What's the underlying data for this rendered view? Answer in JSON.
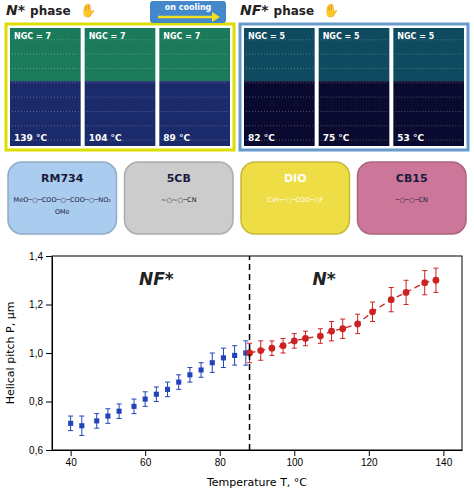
{
  "chart_data": {
    "type": "scatter",
    "xlabel": "Temperature T, °C",
    "ylabel": "Helical pitch P, μm",
    "xlim": [
      35,
      145
    ],
    "ylim": [
      0.6,
      1.4
    ],
    "xticks": [
      40,
      60,
      80,
      100,
      120,
      140
    ],
    "yticks": [
      {
        "value": 0.6,
        "label": "0,6"
      },
      {
        "value": 0.8,
        "label": "0,8"
      },
      {
        "value": 1.0,
        "label": "1,0"
      },
      {
        "value": 1.2,
        "label": "1,2"
      },
      {
        "value": 1.4,
        "label": "1,4"
      }
    ],
    "series": [
      {
        "color": "#2244bb",
        "marker": "square",
        "x": [
          40,
          43,
          47,
          50,
          53,
          57,
          60,
          63,
          66,
          69,
          72,
          75,
          78,
          81,
          84,
          87
        ],
        "values": [
          0.71,
          0.7,
          0.72,
          0.74,
          0.76,
          0.78,
          0.81,
          0.83,
          0.85,
          0.88,
          0.91,
          0.93,
          0.96,
          0.98,
          0.99,
          1.0
        ],
        "errors": [
          0.03,
          0.04,
          0.03,
          0.03,
          0.03,
          0.03,
          0.03,
          0.03,
          0.03,
          0.03,
          0.03,
          0.03,
          0.04,
          0.04,
          0.04,
          0.05
        ]
      },
      {
        "color": "#cc2222",
        "marker": "circle",
        "line_style": "dashed",
        "x": [
          88,
          91,
          94,
          97,
          100,
          103,
          107,
          110,
          113,
          117,
          121,
          126,
          130,
          135,
          138
        ],
        "values": [
          1.0,
          1.01,
          1.02,
          1.03,
          1.05,
          1.06,
          1.07,
          1.09,
          1.1,
          1.12,
          1.17,
          1.22,
          1.25,
          1.29,
          1.3
        ],
        "errors": [
          0.04,
          0.04,
          0.03,
          0.03,
          0.03,
          0.03,
          0.03,
          0.04,
          0.04,
          0.04,
          0.04,
          0.05,
          0.05,
          0.05,
          0.05
        ]
      }
    ],
    "vlines": [
      {
        "x": 88,
        "color": "black",
        "line_style": "dashed"
      }
    ],
    "annotations": [
      {
        "text": "NF*",
        "x": 63,
        "y": 1.3
      },
      {
        "text": "N*",
        "x": 108,
        "y": 1.3
      }
    ],
    "phases": [
      {
        "name": "N*",
        "label": "phase",
        "icon": "✋",
        "colors": [
          "#1a7a5a",
          "#1a2a6a",
          "#dddd00"
        ],
        "panels": [
          {
            "label": "NGC = 7",
            "temperature": "139 °C"
          },
          {
            "label": "NGC = 7",
            "temperature": "104 °C"
          },
          {
            "label": "NGC = 7",
            "temperature": "89 °C"
          }
        ]
      },
      {
        "name": "NF*",
        "label": "phase",
        "icon": "✋",
        "colors": [
          "#0e4a60",
          "#0a0a30",
          "#6699cc"
        ],
        "panels": [
          {
            "label": "NGC = 5",
            "temperature": "82 °C"
          },
          {
            "label": "NGC = 5",
            "temperature": "75 °C"
          },
          {
            "label": "NGC = 5",
            "temperature": "53 °C"
          }
        ]
      }
    ],
    "arrow": {
      "label": "on cooling",
      "colors": [
        "#4488cc",
        "#f0e020"
      ]
    },
    "molecules": [
      {
        "name": "RM734",
        "color": "#aaccee",
        "structure": [
          "MeO─○─COO─○─COO─○─NO₂",
          "OMe"
        ]
      },
      {
        "name": "5CB",
        "color": "#cccccc",
        "structure": [
          "∼○∼○─CN"
        ]
      },
      {
        "name": "DIO",
        "color": "#eedd44",
        "structure": [
          "C₃H₇─○─COO─○F"
        ]
      },
      {
        "name": "CB15",
        "color": "#cc7799",
        "structure": [
          "─○─○─CN"
        ]
      }
    ]
  }
}
